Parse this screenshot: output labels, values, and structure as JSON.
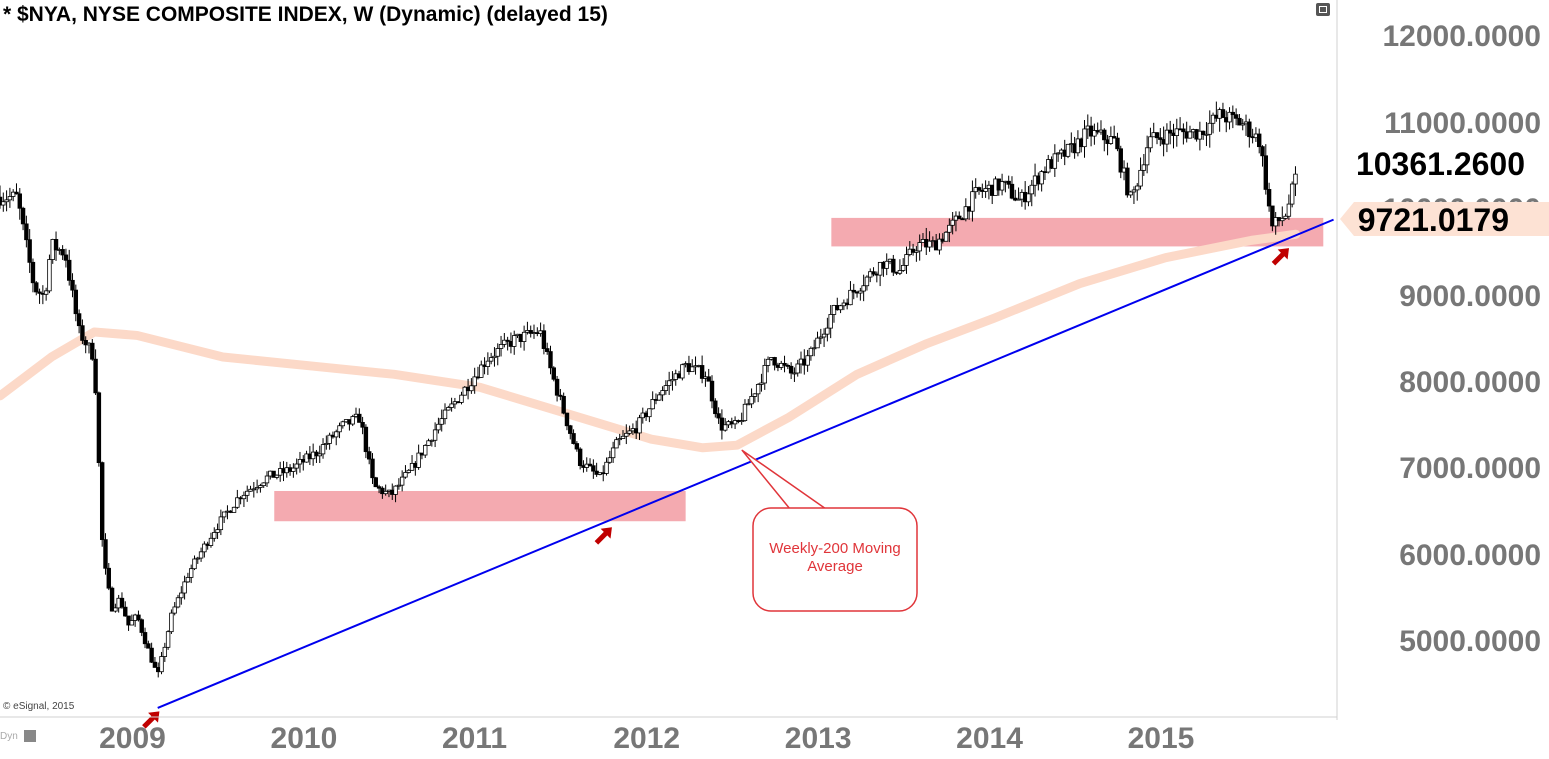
{
  "header": {
    "title": "* $NYA, NYSE COMPOSITE INDEX, W (Dynamic) (delayed 15)"
  },
  "footer": {
    "copyright": "© eSignal, 2015",
    "mode": "Dyn"
  },
  "price_labels": {
    "last": "10361.2600",
    "ma_value": "9721.0179"
  },
  "annotation": {
    "text": "Weekly-200 Moving Average"
  },
  "colors": {
    "candle": "#000000",
    "moving_average": "#fcd9c8",
    "trendline": "#0000ee",
    "zone": "#f4aab0",
    "arrow": "#c00000",
    "axis_text": "#777777",
    "callout_border": "#e0353a"
  },
  "chart_data": {
    "type": "candlestick",
    "title": "* $NYA, NYSE COMPOSITE INDEX, W (Dynamic) (delayed 15)",
    "y_ticks": [
      "12000.0000",
      "11000.0000",
      "10000.0000",
      "9000.0000",
      "8000.0000",
      "7000.0000",
      "6000.0000",
      "5000.0000"
    ],
    "x_ticks": [
      "2009",
      "2010",
      "2011",
      "2012",
      "2013",
      "2014",
      "2015"
    ],
    "ylim": [
      4100,
      12200
    ],
    "xlim": [
      2008.2,
      2016.0
    ],
    "price_path": [
      [
        2008.2,
        10150
      ],
      [
        2008.3,
        10150
      ],
      [
        2008.4,
        9100
      ],
      [
        2008.46,
        9000
      ],
      [
        2008.5,
        9600
      ],
      [
        2008.58,
        9500
      ],
      [
        2008.66,
        8600
      ],
      [
        2008.75,
        8300
      ],
      [
        2008.8,
        6000
      ],
      [
        2008.85,
        5400
      ],
      [
        2008.9,
        5500
      ],
      [
        2008.95,
        5200
      ],
      [
        2009.0,
        5300
      ],
      [
        2009.05,
        5000
      ],
      [
        2009.12,
        4600
      ],
      [
        2009.2,
        5300
      ],
      [
        2009.3,
        5800
      ],
      [
        2009.45,
        6300
      ],
      [
        2009.6,
        6700
      ],
      [
        2009.75,
        6900
      ],
      [
        2009.9,
        7000
      ],
      [
        2010.05,
        7200
      ],
      [
        2010.2,
        7500
      ],
      [
        2010.3,
        7600
      ],
      [
        2010.38,
        6800
      ],
      [
        2010.48,
        6700
      ],
      [
        2010.6,
        7000
      ],
      [
        2010.75,
        7500
      ],
      [
        2010.9,
        7900
      ],
      [
        2011.05,
        8300
      ],
      [
        2011.2,
        8500
      ],
      [
        2011.35,
        8600
      ],
      [
        2011.42,
        8100
      ],
      [
        2011.58,
        7100
      ],
      [
        2011.7,
        6900
      ],
      [
        2011.8,
        7300
      ],
      [
        2011.92,
        7500
      ],
      [
        2012.05,
        7900
      ],
      [
        2012.2,
        8200
      ],
      [
        2012.32,
        8100
      ],
      [
        2012.4,
        7500
      ],
      [
        2012.5,
        7500
      ],
      [
        2012.6,
        7900
      ],
      [
        2012.7,
        8300
      ],
      [
        2012.82,
        8100
      ],
      [
        2012.92,
        8300
      ],
      [
        2013.05,
        8800
      ],
      [
        2013.2,
        9100
      ],
      [
        2013.35,
        9400
      ],
      [
        2013.45,
        9300
      ],
      [
        2013.55,
        9600
      ],
      [
        2013.65,
        9600
      ],
      [
        2013.75,
        9800
      ],
      [
        2013.9,
        10200
      ],
      [
        2014.05,
        10300
      ],
      [
        2014.15,
        10100
      ],
      [
        2014.3,
        10500
      ],
      [
        2014.45,
        10700
      ],
      [
        2014.55,
        10900
      ],
      [
        2014.7,
        10800
      ],
      [
        2014.8,
        10100
      ],
      [
        2014.9,
        10800
      ],
      [
        2015.05,
        10900
      ],
      [
        2015.2,
        10900
      ],
      [
        2015.32,
        11100
      ],
      [
        2015.45,
        11000
      ],
      [
        2015.55,
        10800
      ],
      [
        2015.62,
        9800
      ],
      [
        2015.7,
        9950
      ],
      [
        2015.76,
        10361
      ]
    ],
    "moving_average": [
      [
        2008.2,
        7850
      ],
      [
        2008.5,
        8300
      ],
      [
        2008.75,
        8590
      ],
      [
        2009.0,
        8550
      ],
      [
        2009.5,
        8300
      ],
      [
        2010.0,
        8200
      ],
      [
        2010.5,
        8100
      ],
      [
        2011.0,
        7950
      ],
      [
        2011.5,
        7650
      ],
      [
        2012.0,
        7350
      ],
      [
        2012.3,
        7250
      ],
      [
        2012.5,
        7280
      ],
      [
        2012.8,
        7600
      ],
      [
        2013.2,
        8100
      ],
      [
        2013.6,
        8450
      ],
      [
        2014.0,
        8750
      ],
      [
        2014.5,
        9150
      ],
      [
        2015.0,
        9450
      ],
      [
        2015.5,
        9650
      ],
      [
        2015.76,
        9721
      ]
    ],
    "trendline": [
      [
        2009.12,
        4240
      ],
      [
        2015.98,
        9890
      ]
    ],
    "support_zones": [
      {
        "x_start": 2009.8,
        "x_end": 2012.2,
        "y_low": 6400,
        "y_high": 6750
      },
      {
        "x_start": 2013.05,
        "x_end": 2015.92,
        "y_low": 9580,
        "y_high": 9910
      }
    ],
    "arrows": [
      {
        "x": 2009.13,
        "y": 4200
      },
      {
        "x": 2011.77,
        "y": 6330
      },
      {
        "x": 2015.72,
        "y": 9560
      }
    ],
    "callout_target": {
      "x": 2012.53,
      "y": 7220
    },
    "last_price": 10361.26,
    "ma_value": 9721.0179,
    "grid": false,
    "scale": "linear"
  }
}
